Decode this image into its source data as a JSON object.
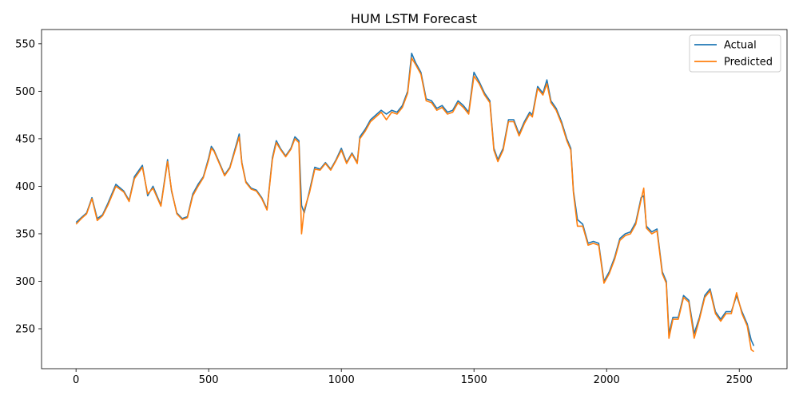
{
  "chart_data": {
    "type": "line",
    "title": "HUM LSTM Forecast",
    "xlabel": "",
    "ylabel": "",
    "xlim": [
      -130,
      2680
    ],
    "ylim": [
      208,
      565
    ],
    "x_ticks": [
      0,
      500,
      1000,
      1500,
      2000,
      2500
    ],
    "y_ticks": [
      250,
      300,
      350,
      400,
      450,
      500,
      550
    ],
    "grid": false,
    "legend_position": "top-right",
    "series": [
      {
        "name": "Actual",
        "color": "#1f77b4",
        "points": [
          [
            0,
            362
          ],
          [
            20,
            367
          ],
          [
            40,
            372
          ],
          [
            60,
            388
          ],
          [
            80,
            366
          ],
          [
            100,
            370
          ],
          [
            120,
            382
          ],
          [
            150,
            402
          ],
          [
            180,
            395
          ],
          [
            200,
            385
          ],
          [
            220,
            410
          ],
          [
            250,
            422
          ],
          [
            270,
            390
          ],
          [
            290,
            400
          ],
          [
            320,
            380
          ],
          [
            345,
            428
          ],
          [
            360,
            395
          ],
          [
            380,
            372
          ],
          [
            400,
            366
          ],
          [
            420,
            368
          ],
          [
            440,
            392
          ],
          [
            460,
            402
          ],
          [
            480,
            410
          ],
          [
            500,
            430
          ],
          [
            510,
            442
          ],
          [
            520,
            438
          ],
          [
            540,
            425
          ],
          [
            560,
            412
          ],
          [
            580,
            420
          ],
          [
            600,
            440
          ],
          [
            615,
            455
          ],
          [
            625,
            425
          ],
          [
            640,
            405
          ],
          [
            660,
            398
          ],
          [
            680,
            396
          ],
          [
            700,
            388
          ],
          [
            720,
            376
          ],
          [
            740,
            430
          ],
          [
            755,
            448
          ],
          [
            770,
            440
          ],
          [
            790,
            432
          ],
          [
            810,
            440
          ],
          [
            825,
            452
          ],
          [
            840,
            448
          ],
          [
            850,
            380
          ],
          [
            860,
            372
          ],
          [
            880,
            395
          ],
          [
            900,
            420
          ],
          [
            920,
            418
          ],
          [
            940,
            425
          ],
          [
            960,
            418
          ],
          [
            980,
            428
          ],
          [
            1000,
            440
          ],
          [
            1020,
            425
          ],
          [
            1040,
            435
          ],
          [
            1060,
            425
          ],
          [
            1070,
            452
          ],
          [
            1090,
            460
          ],
          [
            1110,
            470
          ],
          [
            1130,
            475
          ],
          [
            1150,
            480
          ],
          [
            1170,
            476
          ],
          [
            1190,
            480
          ],
          [
            1210,
            478
          ],
          [
            1230,
            485
          ],
          [
            1250,
            500
          ],
          [
            1265,
            540
          ],
          [
            1280,
            530
          ],
          [
            1300,
            520
          ],
          [
            1320,
            492
          ],
          [
            1340,
            490
          ],
          [
            1360,
            482
          ],
          [
            1380,
            485
          ],
          [
            1400,
            478
          ],
          [
            1420,
            480
          ],
          [
            1440,
            490
          ],
          [
            1460,
            485
          ],
          [
            1480,
            478
          ],
          [
            1500,
            520
          ],
          [
            1520,
            510
          ],
          [
            1540,
            498
          ],
          [
            1560,
            490
          ],
          [
            1575,
            440
          ],
          [
            1590,
            428
          ],
          [
            1610,
            440
          ],
          [
            1630,
            470
          ],
          [
            1650,
            470
          ],
          [
            1670,
            455
          ],
          [
            1690,
            468
          ],
          [
            1710,
            478
          ],
          [
            1720,
            475
          ],
          [
            1740,
            505
          ],
          [
            1760,
            498
          ],
          [
            1775,
            512
          ],
          [
            1790,
            490
          ],
          [
            1810,
            482
          ],
          [
            1830,
            468
          ],
          [
            1850,
            450
          ],
          [
            1865,
            440
          ],
          [
            1875,
            395
          ],
          [
            1890,
            365
          ],
          [
            1910,
            360
          ],
          [
            1930,
            340
          ],
          [
            1950,
            342
          ],
          [
            1970,
            340
          ],
          [
            1990,
            300
          ],
          [
            2010,
            310
          ],
          [
            2030,
            325
          ],
          [
            2050,
            345
          ],
          [
            2070,
            350
          ],
          [
            2090,
            352
          ],
          [
            2110,
            362
          ],
          [
            2130,
            388
          ],
          [
            2140,
            390
          ],
          [
            2150,
            358
          ],
          [
            2170,
            352
          ],
          [
            2190,
            355
          ],
          [
            2210,
            310
          ],
          [
            2225,
            300
          ],
          [
            2235,
            245
          ],
          [
            2250,
            262
          ],
          [
            2270,
            262
          ],
          [
            2290,
            285
          ],
          [
            2310,
            280
          ],
          [
            2330,
            245
          ],
          [
            2350,
            262
          ],
          [
            2370,
            285
          ],
          [
            2390,
            292
          ],
          [
            2410,
            268
          ],
          [
            2430,
            260
          ],
          [
            2450,
            268
          ],
          [
            2470,
            268
          ],
          [
            2490,
            285
          ],
          [
            2510,
            268
          ],
          [
            2530,
            255
          ],
          [
            2545,
            238
          ],
          [
            2555,
            232
          ]
        ]
      },
      {
        "name": "Predicted",
        "color": "#ff7f0e",
        "points": [
          [
            0,
            360
          ],
          [
            20,
            366
          ],
          [
            40,
            371
          ],
          [
            60,
            387
          ],
          [
            80,
            364
          ],
          [
            100,
            369
          ],
          [
            120,
            380
          ],
          [
            150,
            400
          ],
          [
            180,
            394
          ],
          [
            200,
            384
          ],
          [
            220,
            408
          ],
          [
            250,
            420
          ],
          [
            270,
            392
          ],
          [
            290,
            398
          ],
          [
            320,
            379
          ],
          [
            345,
            426
          ],
          [
            360,
            396
          ],
          [
            380,
            371
          ],
          [
            400,
            365
          ],
          [
            420,
            367
          ],
          [
            440,
            390
          ],
          [
            460,
            400
          ],
          [
            480,
            409
          ],
          [
            500,
            428
          ],
          [
            510,
            440
          ],
          [
            520,
            437
          ],
          [
            540,
            424
          ],
          [
            560,
            411
          ],
          [
            580,
            419
          ],
          [
            600,
            438
          ],
          [
            615,
            452
          ],
          [
            625,
            424
          ],
          [
            640,
            404
          ],
          [
            660,
            397
          ],
          [
            680,
            395
          ],
          [
            700,
            387
          ],
          [
            720,
            375
          ],
          [
            740,
            428
          ],
          [
            755,
            446
          ],
          [
            770,
            439
          ],
          [
            790,
            431
          ],
          [
            810,
            439
          ],
          [
            825,
            450
          ],
          [
            840,
            446
          ],
          [
            850,
            350
          ],
          [
            860,
            375
          ],
          [
            880,
            393
          ],
          [
            900,
            418
          ],
          [
            920,
            417
          ],
          [
            940,
            424
          ],
          [
            960,
            417
          ],
          [
            980,
            427
          ],
          [
            1000,
            438
          ],
          [
            1020,
            424
          ],
          [
            1040,
            434
          ],
          [
            1060,
            424
          ],
          [
            1070,
            450
          ],
          [
            1090,
            458
          ],
          [
            1110,
            468
          ],
          [
            1130,
            473
          ],
          [
            1150,
            478
          ],
          [
            1170,
            470
          ],
          [
            1190,
            478
          ],
          [
            1210,
            476
          ],
          [
            1230,
            483
          ],
          [
            1250,
            498
          ],
          [
            1265,
            535
          ],
          [
            1280,
            528
          ],
          [
            1300,
            518
          ],
          [
            1320,
            490
          ],
          [
            1340,
            488
          ],
          [
            1360,
            480
          ],
          [
            1380,
            483
          ],
          [
            1400,
            476
          ],
          [
            1420,
            478
          ],
          [
            1440,
            488
          ],
          [
            1460,
            483
          ],
          [
            1480,
            476
          ],
          [
            1500,
            516
          ],
          [
            1520,
            508
          ],
          [
            1540,
            496
          ],
          [
            1560,
            488
          ],
          [
            1575,
            438
          ],
          [
            1590,
            426
          ],
          [
            1610,
            438
          ],
          [
            1630,
            468
          ],
          [
            1650,
            468
          ],
          [
            1670,
            453
          ],
          [
            1690,
            466
          ],
          [
            1710,
            476
          ],
          [
            1720,
            473
          ],
          [
            1740,
            503
          ],
          [
            1760,
            496
          ],
          [
            1775,
            508
          ],
          [
            1790,
            488
          ],
          [
            1810,
            480
          ],
          [
            1830,
            466
          ],
          [
            1850,
            448
          ],
          [
            1865,
            438
          ],
          [
            1875,
            393
          ],
          [
            1890,
            358
          ],
          [
            1910,
            358
          ],
          [
            1930,
            338
          ],
          [
            1950,
            340
          ],
          [
            1970,
            338
          ],
          [
            1990,
            298
          ],
          [
            2010,
            308
          ],
          [
            2030,
            323
          ],
          [
            2050,
            343
          ],
          [
            2070,
            348
          ],
          [
            2090,
            350
          ],
          [
            2110,
            360
          ],
          [
            2130,
            386
          ],
          [
            2140,
            398
          ],
          [
            2150,
            356
          ],
          [
            2170,
            350
          ],
          [
            2190,
            353
          ],
          [
            2210,
            308
          ],
          [
            2225,
            298
          ],
          [
            2235,
            240
          ],
          [
            2250,
            260
          ],
          [
            2270,
            260
          ],
          [
            2290,
            283
          ],
          [
            2310,
            278
          ],
          [
            2330,
            240
          ],
          [
            2350,
            260
          ],
          [
            2370,
            283
          ],
          [
            2390,
            290
          ],
          [
            2410,
            266
          ],
          [
            2430,
            258
          ],
          [
            2450,
            266
          ],
          [
            2470,
            266
          ],
          [
            2490,
            288
          ],
          [
            2510,
            266
          ],
          [
            2530,
            253
          ],
          [
            2545,
            228
          ],
          [
            2555,
            226
          ]
        ]
      }
    ]
  }
}
